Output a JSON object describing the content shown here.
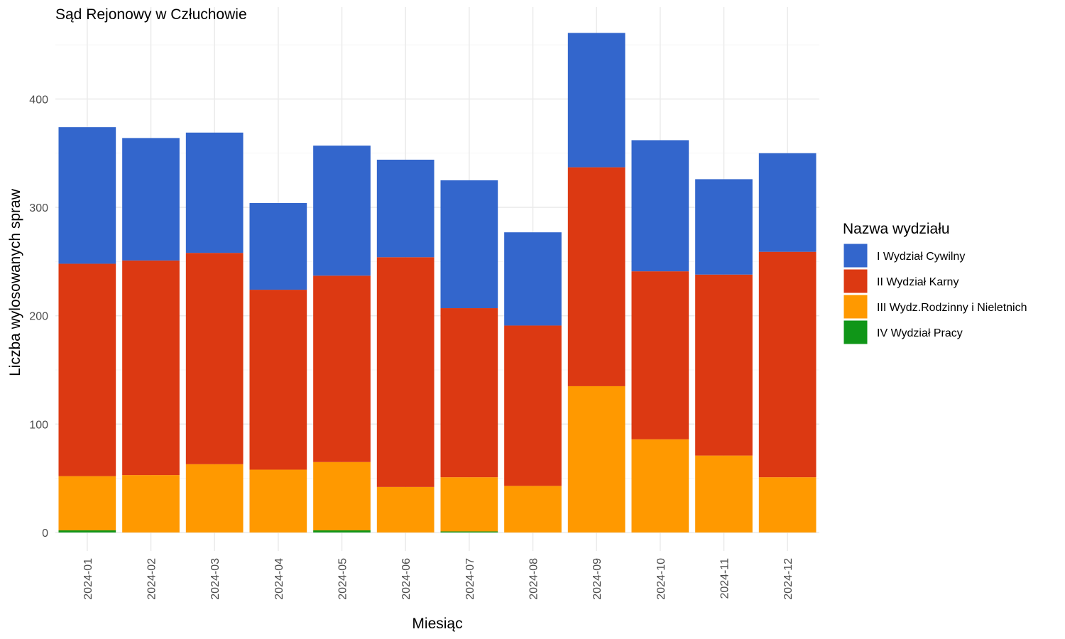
{
  "chart_data": {
    "type": "bar",
    "stacked": true,
    "title": "Sąd Rejonowy w Człuchowie",
    "xlabel": "Miesiąc",
    "ylabel": "Liczba wylosowanych spraw",
    "ylim": [
      0,
      470
    ],
    "yticks": [
      0,
      100,
      200,
      300,
      400
    ],
    "grid": true,
    "legend": {
      "title": "Nazwa wydziału",
      "position": "right"
    },
    "categories": [
      "2024-01",
      "2024-02",
      "2024-03",
      "2024-04",
      "2024-05",
      "2024-06",
      "2024-07",
      "2024-08",
      "2024-09",
      "2024-10",
      "2024-11",
      "2024-12"
    ],
    "series": [
      {
        "name": "IV Wydział Pracy",
        "color": "#109618",
        "values": [
          2,
          0,
          0,
          0,
          2,
          0,
          1,
          0,
          0,
          0,
          0,
          0
        ]
      },
      {
        "name": "III Wydz.Rodzinny i Nieletnich",
        "color": "#FF9900",
        "values": [
          50,
          53,
          63,
          58,
          63,
          42,
          50,
          43,
          135,
          86,
          71,
          51
        ]
      },
      {
        "name": "II Wydział Karny",
        "color": "#DC3912",
        "values": [
          196,
          198,
          195,
          166,
          172,
          212,
          156,
          148,
          202,
          155,
          167,
          208
        ]
      },
      {
        "name": "I Wydział Cywilny",
        "color": "#3366CC",
        "values": [
          126,
          113,
          111,
          80,
          120,
          90,
          118,
          86,
          124,
          121,
          88,
          91
        ]
      }
    ]
  }
}
